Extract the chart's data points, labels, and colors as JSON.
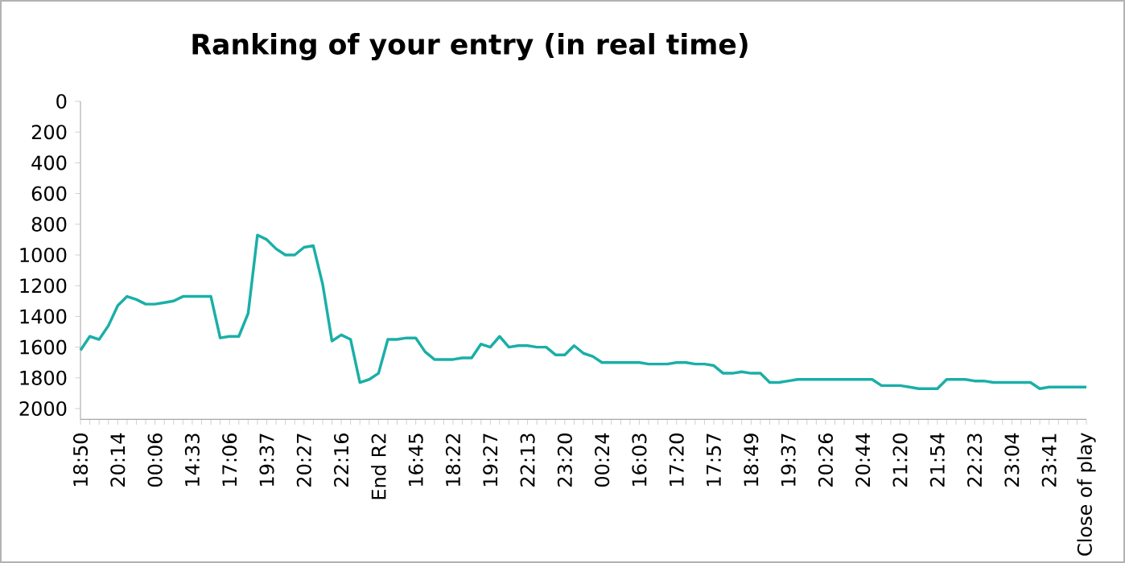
{
  "chart_data": {
    "type": "line",
    "title": "Ranking of your entry (in real time)",
    "categories": [
      "18:50",
      null,
      null,
      null,
      "20:14",
      null,
      null,
      null,
      "00:06",
      null,
      null,
      null,
      "14:33",
      null,
      null,
      null,
      "17:06",
      null,
      null,
      null,
      "19:37",
      null,
      null,
      null,
      "20:27",
      null,
      null,
      null,
      "22:16",
      null,
      null,
      null,
      "End R2",
      null,
      null,
      null,
      "16:45",
      null,
      null,
      null,
      "18:22",
      null,
      null,
      null,
      "19:27",
      null,
      null,
      null,
      "22:13",
      null,
      null,
      null,
      "23:20",
      null,
      null,
      null,
      "00:24",
      null,
      null,
      null,
      "16:03",
      null,
      null,
      null,
      "17:20",
      null,
      null,
      null,
      "17:57",
      null,
      null,
      null,
      "18:49",
      null,
      null,
      null,
      "19:37",
      null,
      null,
      null,
      "20:26",
      null,
      null,
      null,
      "20:44",
      null,
      null,
      null,
      "21:20",
      null,
      null,
      null,
      "21:54",
      null,
      null,
      null,
      "22:23",
      null,
      null,
      null,
      "23:04",
      null,
      null,
      null,
      "23:41",
      null,
      null,
      null,
      "Close of play"
    ],
    "values": [
      1620,
      1530,
      1550,
      1460,
      1330,
      1270,
      1290,
      1320,
      1320,
      1310,
      1300,
      1270,
      1270,
      1270,
      1270,
      1540,
      1530,
      1530,
      1380,
      870,
      900,
      960,
      1000,
      1000,
      950,
      940,
      1190,
      1560,
      1520,
      1550,
      1830,
      1810,
      1770,
      1550,
      1550,
      1540,
      1540,
      1630,
      1680,
      1680,
      1680,
      1670,
      1670,
      1580,
      1600,
      1530,
      1600,
      1590,
      1590,
      1600,
      1600,
      1650,
      1650,
      1590,
      1640,
      1660,
      1700,
      1700,
      1700,
      1700,
      1700,
      1710,
      1710,
      1710,
      1700,
      1700,
      1710,
      1710,
      1720,
      1770,
      1770,
      1760,
      1770,
      1770,
      1830,
      1830,
      1820,
      1810,
      1810,
      1810,
      1810,
      1810,
      1810,
      1810,
      1810,
      1810,
      1850,
      1850,
      1850,
      1860,
      1870,
      1870,
      1870,
      1810,
      1810,
      1810,
      1820,
      1820,
      1830,
      1830,
      1830,
      1830,
      1830,
      1870,
      1860,
      1860,
      1860,
      1860,
      1860
    ],
    "color": "#1aafa8",
    "ylim": [
      2070,
      0
    ],
    "yticks": [
      0,
      200,
      400,
      600,
      800,
      1000,
      1200,
      1400,
      1600,
      1800,
      2000
    ]
  }
}
